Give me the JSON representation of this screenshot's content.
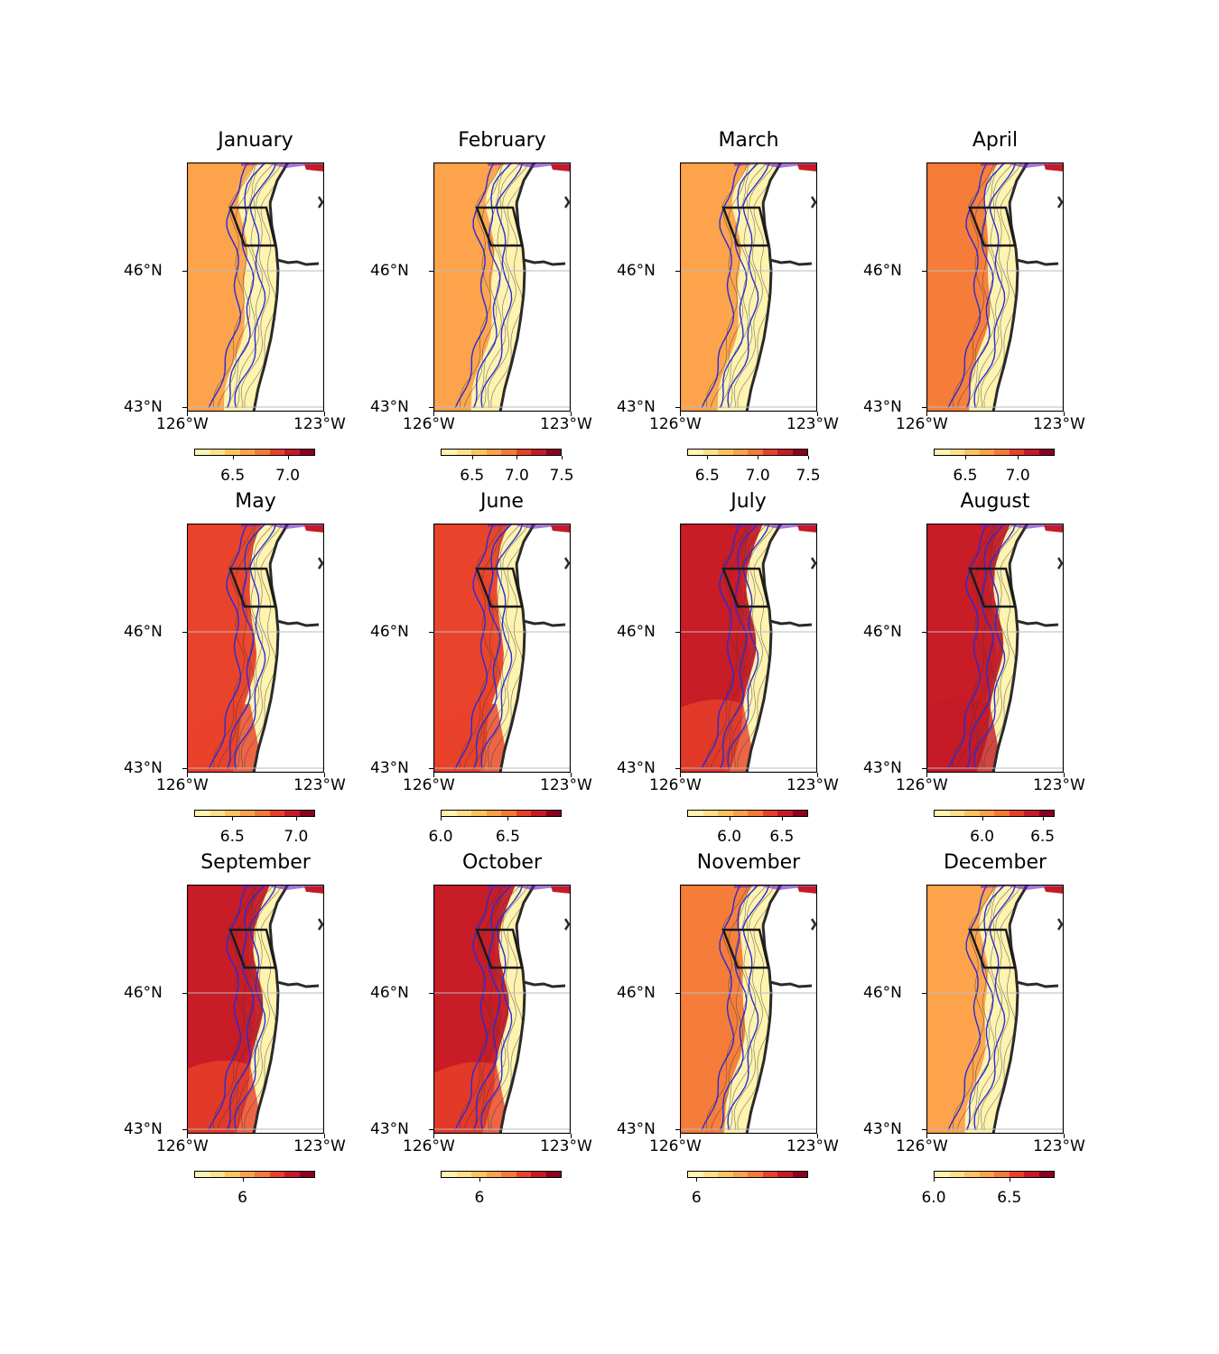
{
  "figure": {
    "lat_labels": [
      "46°N",
      "43°N"
    ],
    "lon_labels": [
      "126°W",
      "123°W"
    ],
    "colormap": [
      "#fff3b0",
      "#fee08b",
      "#fec35f",
      "#fda14a",
      "#f57a38",
      "#e8412a",
      "#c61a27",
      "#8c0021"
    ],
    "contour_color_outer": "#2b2bd6",
    "coast_color": "#2a2a2a"
  },
  "panels": [
    {
      "title": "January",
      "intensity": 0.15,
      "colorbar": {
        "min": 6.15,
        "max": 7.25,
        "ticks": [
          6.5,
          7.0
        ],
        "labels": [
          "6.5",
          "7.0"
        ]
      }
    },
    {
      "title": "February",
      "intensity": 0.2,
      "colorbar": {
        "min": 6.15,
        "max": 7.5,
        "ticks": [
          6.5,
          7.0,
          7.5
        ],
        "labels": [
          "6.5",
          "7.0",
          "7.5"
        ]
      }
    },
    {
      "title": "March",
      "intensity": 0.2,
      "colorbar": {
        "min": 6.3,
        "max": 7.5,
        "ticks": [
          6.5,
          7.0,
          7.5
        ],
        "labels": [
          "6.5",
          "7.0",
          "7.5"
        ]
      }
    },
    {
      "title": "April",
      "intensity": 0.3,
      "colorbar": {
        "min": 6.2,
        "max": 7.35,
        "ticks": [
          6.5,
          7.0
        ],
        "labels": [
          "6.5",
          "7.0"
        ]
      }
    },
    {
      "title": "May",
      "intensity": 0.5,
      "colorbar": {
        "min": 6.2,
        "max": 7.15,
        "ticks": [
          6.5,
          7.0
        ],
        "labels": [
          "6.5",
          "7.0"
        ]
      }
    },
    {
      "title": "June",
      "intensity": 0.55,
      "colorbar": {
        "min": 6.0,
        "max": 6.9,
        "ticks": [
          6.0,
          6.5
        ],
        "labels": [
          "6.0",
          "6.5"
        ]
      }
    },
    {
      "title": "July",
      "intensity": 0.8,
      "colorbar": {
        "min": 5.6,
        "max": 6.75,
        "ticks": [
          6.0,
          6.5
        ],
        "labels": [
          "6.0",
          "6.5"
        ]
      }
    },
    {
      "title": "August",
      "intensity": 0.85,
      "colorbar": {
        "min": 5.6,
        "max": 6.6,
        "ticks": [
          6.0,
          6.5
        ],
        "labels": [
          "6.0",
          "6.5"
        ]
      }
    },
    {
      "title": "September",
      "intensity": 0.8,
      "colorbar": {
        "min": 5.6,
        "max": 6.6,
        "ticks": [
          6.0
        ],
        "labels": [
          "6"
        ]
      }
    },
    {
      "title": "October",
      "intensity": 0.75,
      "colorbar": {
        "min": 5.6,
        "max": 6.85,
        "ticks": [
          6.0
        ],
        "labels": [
          "6"
        ]
      }
    },
    {
      "title": "November",
      "intensity": 0.4,
      "colorbar": {
        "min": 5.9,
        "max": 7.2,
        "ticks": [
          6.0
        ],
        "labels": [
          "6"
        ]
      }
    },
    {
      "title": "December",
      "intensity": 0.25,
      "colorbar": {
        "min": 6.0,
        "max": 6.8,
        "ticks": [
          6.0,
          6.5
        ],
        "labels": [
          "6.0",
          "6.5"
        ]
      }
    }
  ]
}
